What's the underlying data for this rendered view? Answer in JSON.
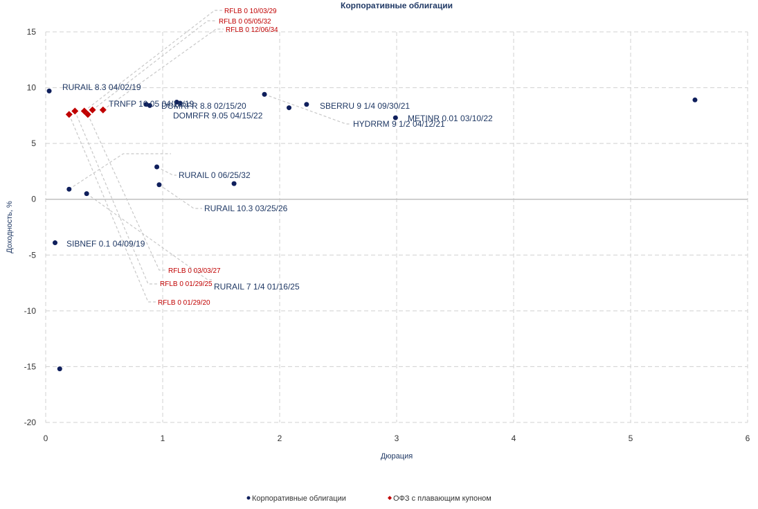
{
  "chart_data": {
    "type": "scatter",
    "title": "Корпоративные облигации",
    "xlabel": "Дюрация",
    "ylabel": "Доходность, %",
    "xlim": [
      0,
      6
    ],
    "ylim": [
      -20,
      15
    ],
    "x_ticks": [
      "0",
      "1",
      "2",
      "3",
      "4",
      "5",
      "6"
    ],
    "y_ticks": [
      "15",
      "10",
      "5",
      "0",
      "-5",
      "-10",
      "-15",
      "-20"
    ],
    "grid": true,
    "legend_position": "bottom",
    "series": [
      {
        "name": "Корпоративные облигации",
        "color": "#0f1f5c",
        "marker": "circle",
        "points": [
          {
            "x": 0.03,
            "y": 9.7,
            "label": "RURAIL 8.3 04/02/19"
          },
          {
            "x": 0.86,
            "y": 8.5,
            "label": "TRNFP 10.05 04/18/19"
          },
          {
            "x": 0.89,
            "y": 8.4,
            "label": ""
          },
          {
            "x": 1.12,
            "y": 8.7,
            "label": "DOMRFR 8.8 02/15/20"
          },
          {
            "x": 1.15,
            "y": 8.6,
            "label": ""
          },
          {
            "x": 1.87,
            "y": 9.4,
            "label": "HYDRRM 9 1/2 04/12/21"
          },
          {
            "x": 2.08,
            "y": 8.2,
            "label": ""
          },
          {
            "x": 2.23,
            "y": 8.5,
            "label": "SBERRU 9 1/4 09/30/21"
          },
          {
            "x": 2.99,
            "y": 7.3,
            "label": "METINR 0.01 03/10/22"
          },
          {
            "x": 5.55,
            "y": 8.9,
            "label": ""
          },
          {
            "x": 0.95,
            "y": 2.9,
            "label": "RURAIL 0 06/25/32"
          },
          {
            "x": 0.97,
            "y": 1.3,
            "label": "RURAIL 10.3 03/25/26"
          },
          {
            "x": 1.61,
            "y": 1.4,
            "label": ""
          },
          {
            "x": 0.2,
            "y": 0.9,
            "label": "DOMRFR 9.05 04/15/22"
          },
          {
            "x": 0.35,
            "y": 0.5,
            "label": "RURAIL 7 1/4 01/16/25"
          },
          {
            "x": 0.08,
            "y": -3.9,
            "label": "SIBNEF 0.1 04/09/19"
          },
          {
            "x": 0.12,
            "y": -15.2,
            "label": ""
          }
        ]
      },
      {
        "name": "ОФЗ с плавающим купоном",
        "color": "#c00000",
        "marker": "diamond",
        "points": [
          {
            "x": 0.2,
            "y": 7.6,
            "label": "RFLB 0 01/29/20"
          },
          {
            "x": 0.25,
            "y": 7.9,
            "label": "RFLB 0 01/29/25"
          },
          {
            "x": 0.33,
            "y": 7.9,
            "label": "RFLB 0 10/03/29"
          },
          {
            "x": 0.36,
            "y": 7.6,
            "label": "RFLB 0 03/03/27"
          },
          {
            "x": 0.4,
            "y": 8.0,
            "label": "RFLB 0 05/05/32"
          },
          {
            "x": 0.49,
            "y": 8.0,
            "label": "RFLB 0 12/06/34"
          }
        ]
      }
    ]
  }
}
